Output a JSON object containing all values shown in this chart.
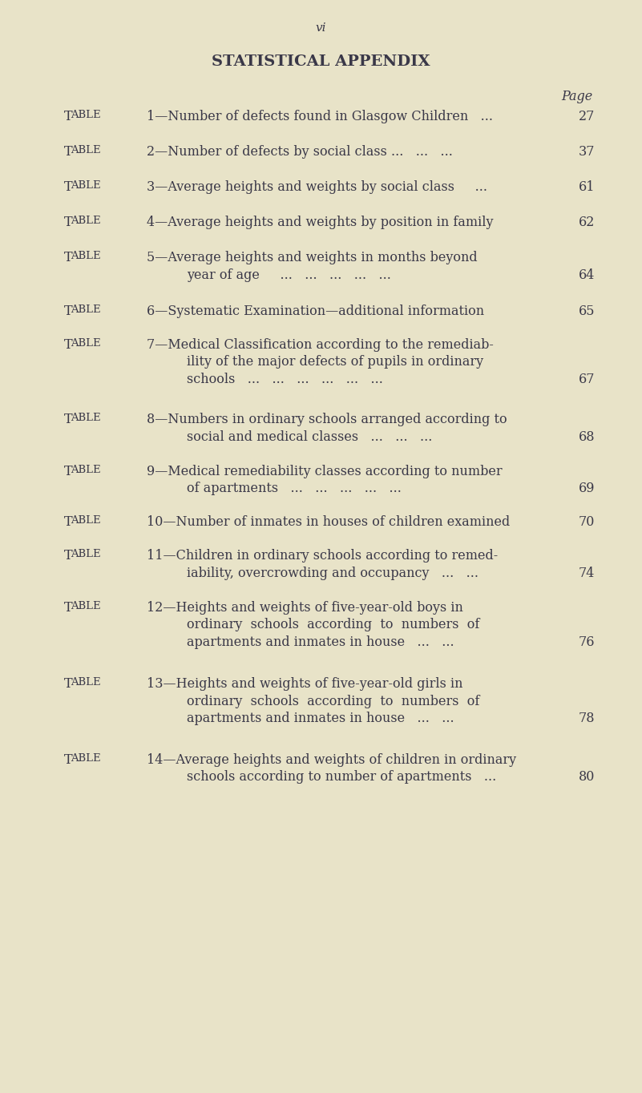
{
  "background_color": "#e8e3c8",
  "text_color": "#3a3848",
  "page_number": "vi",
  "title": "STATISTICAL APPENDIX",
  "page_label": "Page",
  "fig_width": 8.01,
  "fig_height": 13.64,
  "dpi": 100,
  "entries": [
    {
      "lines": [
        {
          "label": "Table",
          "num_text": "1—Number of defects found in Glasgow Children   ...",
          "page": "27",
          "indent": false
        }
      ]
    },
    {
      "lines": [
        {
          "label": "Table",
          "num_text": "2—Number of defects by social class ...   ...   ...",
          "page": "37",
          "indent": false
        }
      ]
    },
    {
      "lines": [
        {
          "label": "Table",
          "num_text": "3—Average heights and weights by social class     ...",
          "page": "61",
          "indent": false
        }
      ]
    },
    {
      "lines": [
        {
          "label": "Table",
          "num_text": "4—Average heights and weights by position in family",
          "page": "62",
          "indent": false
        }
      ]
    },
    {
      "lines": [
        {
          "label": "Table",
          "num_text": "5—Average heights and weights in months beyond",
          "page": null,
          "indent": false
        },
        {
          "label": null,
          "num_text": "year of age     ...   ...   ...   ...   ...",
          "page": "64",
          "indent": true
        }
      ]
    },
    {
      "lines": [
        {
          "label": "Table",
          "num_text": "6—Systematic Examination—additional information",
          "page": "65",
          "indent": false
        }
      ]
    },
    {
      "lines": [
        {
          "label": "Table",
          "num_text": "7—Medical Classification according to the remediab-",
          "page": null,
          "indent": false
        },
        {
          "label": null,
          "num_text": "ility of the major defects of pupils in ordinary",
          "page": null,
          "indent": true
        },
        {
          "label": null,
          "num_text": "schools   ...   ...   ...   ...   ...   ...",
          "page": "67",
          "indent": true
        }
      ]
    },
    {
      "lines": [
        {
          "label": "Table",
          "num_text": "8—Numbers in ordinary schools arranged according to",
          "page": null,
          "indent": false
        },
        {
          "label": null,
          "num_text": "social and medical classes   ...   ...   ...",
          "page": "68",
          "indent": true
        }
      ]
    },
    {
      "lines": [
        {
          "label": "Table",
          "num_text": "9—Medical remediability classes according to number",
          "page": null,
          "indent": false
        },
        {
          "label": null,
          "num_text": "of apartments   ...   ...   ...   ...   ...",
          "page": "69",
          "indent": true
        }
      ]
    },
    {
      "lines": [
        {
          "label": "Table",
          "num_text": "10—Number of inmates in houses of children examined",
          "page": "70",
          "indent": false
        }
      ]
    },
    {
      "lines": [
        {
          "label": "Table",
          "num_text": "11—Children in ordinary schools according to remed-",
          "page": null,
          "indent": false
        },
        {
          "label": null,
          "num_text": "iability, overcrowding and occupancy   ...   ...",
          "page": "74",
          "indent": true
        }
      ]
    },
    {
      "lines": [
        {
          "label": "Table",
          "num_text": "12—Heights and weights of five-year-old boys in",
          "page": null,
          "indent": false
        },
        {
          "label": null,
          "num_text": "ordinary  schools  according  to  numbers  of",
          "page": null,
          "indent": true
        },
        {
          "label": null,
          "num_text": "apartments and inmates in house   ...   ...",
          "page": "76",
          "indent": true
        }
      ]
    },
    {
      "lines": [
        {
          "label": "Table",
          "num_text": "13—Heights and weights of five-year-old girls in",
          "page": null,
          "indent": false
        },
        {
          "label": null,
          "num_text": "ordinary  schools  according  to  numbers  of",
          "page": null,
          "indent": true
        },
        {
          "label": null,
          "num_text": "apartments and inmates in house   ...   ...",
          "page": "78",
          "indent": true
        }
      ]
    },
    {
      "lines": [
        {
          "label": "Table",
          "num_text": "14—Average heights and weights of children in ordinary",
          "page": null,
          "indent": false
        },
        {
          "label": null,
          "num_text": "schools according to number of apartments   ...",
          "page": "80",
          "indent": true
        }
      ]
    }
  ]
}
